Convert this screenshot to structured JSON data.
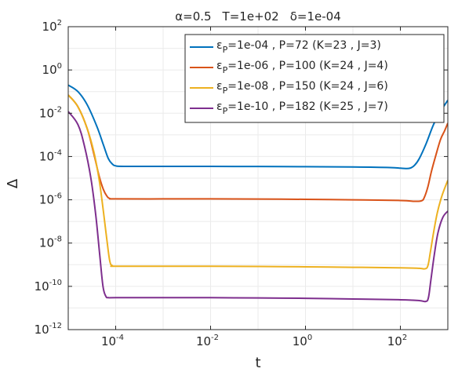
{
  "chart_data": {
    "type": "line",
    "title": "α=0.5   T=1e+02   δ=1e-04",
    "title_parts": {
      "alpha": "α=0.5",
      "T": "T=1e+02",
      "delta": "δ=1e-04"
    },
    "xlabel": "t",
    "ylabel": "Δ",
    "x_scale": "log",
    "y_scale": "log",
    "xlim": [
      1e-05,
      1000
    ],
    "ylim": [
      1e-12,
      100
    ],
    "x_ticks": [
      {
        "value": 0.0001,
        "base": "10",
        "exp": "-4"
      },
      {
        "value": 0.01,
        "base": "10",
        "exp": "-2"
      },
      {
        "value": 1,
        "base": "10",
        "exp": "0"
      },
      {
        "value": 100,
        "base": "10",
        "exp": "2"
      }
    ],
    "y_ticks": [
      {
        "value": 100,
        "base": "10",
        "exp": "2"
      },
      {
        "value": 1,
        "base": "10",
        "exp": "0"
      },
      {
        "value": 0.01,
        "base": "10",
        "exp": "-2"
      },
      {
        "value": 0.0001,
        "base": "10",
        "exp": "-4"
      },
      {
        "value": 1e-06,
        "base": "10",
        "exp": "-6"
      },
      {
        "value": 1e-08,
        "base": "10",
        "exp": "-8"
      },
      {
        "value": 1e-10,
        "base": "10",
        "exp": "-10"
      },
      {
        "value": 1e-12,
        "base": "10",
        "exp": "-12"
      }
    ],
    "grid": true,
    "legend_position": "top-right",
    "series": [
      {
        "legend": {
          "eps": "ε",
          "sub": "P",
          "rest": "=1e-04 ,   P=72   (K=23 ,   J=3)"
        },
        "color": "#0072BD",
        "points": [
          [
            1e-05,
            0.2
          ],
          [
            1.6e-05,
            0.1
          ],
          [
            2.5e-05,
            0.025
          ],
          [
            4e-05,
            0.0025
          ],
          [
            5.5e-05,
            0.00035
          ],
          [
            7e-05,
            8e-05
          ],
          [
            8.5e-05,
            4.5e-05
          ],
          [
            0.0001,
            3.7e-05
          ],
          [
            0.00015,
            3.5e-05
          ],
          [
            0.001,
            3.5e-05
          ],
          [
            0.01,
            3.5e-05
          ],
          [
            0.1,
            3.45e-05
          ],
          [
            1,
            3.4e-05
          ],
          [
            10,
            3.3e-05
          ],
          [
            60,
            3.1e-05
          ],
          [
            120,
            2.8e-05
          ],
          [
            160,
            2.9e-05
          ],
          [
            200,
            4e-05
          ],
          [
            250,
            8e-05
          ],
          [
            350,
            0.0004
          ],
          [
            500,
            0.003
          ],
          [
            700,
            0.012
          ],
          [
            1000,
            0.04
          ]
        ]
      },
      {
        "legend": {
          "eps": "ε",
          "sub": "P",
          "rest": "=1e-06 ,   P=100   (K=24 ,   J=4)"
        },
        "color": "#D95319",
        "points": [
          [
            1e-05,
            0.07
          ],
          [
            1.6e-05,
            0.02
          ],
          [
            2.5e-05,
            0.002
          ],
          [
            3.5e-05,
            0.00012
          ],
          [
            4.5e-05,
            1.2e-05
          ],
          [
            5.5e-05,
            3e-06
          ],
          [
            6.5e-05,
            1.5e-06
          ],
          [
            7.5e-05,
            1.15e-06
          ],
          [
            0.0001,
            1.1e-06
          ],
          [
            0.001,
            1.1e-06
          ],
          [
            0.01,
            1.1e-06
          ],
          [
            0.1,
            1.08e-06
          ],
          [
            1,
            1.05e-06
          ],
          [
            10,
            1e-06
          ],
          [
            100,
            9.3e-07
          ],
          [
            200,
            8.5e-07
          ],
          [
            280,
            9e-07
          ],
          [
            320,
            1.3e-06
          ],
          [
            380,
            4e-06
          ],
          [
            450,
            2e-05
          ],
          [
            550,
            0.0001
          ],
          [
            700,
            0.0006
          ],
          [
            850,
            0.0015
          ],
          [
            1000,
            0.0035
          ]
        ]
      },
      {
        "legend": {
          "eps": "ε",
          "sub": "P",
          "rest": "=1e-08 ,   P=150   (K=24 ,   J=6)"
        },
        "color": "#EDB120",
        "points": [
          [
            1e-05,
            0.07
          ],
          [
            1.6e-05,
            0.02
          ],
          [
            2.5e-05,
            0.002
          ],
          [
            3.5e-05,
            0.00015
          ],
          [
            4.5e-05,
            8e-06
          ],
          [
            5.5e-05,
            3e-07
          ],
          [
            6.5e-05,
            1.5e-08
          ],
          [
            7.5e-05,
            1.5e-09
          ],
          [
            8.5e-05,
            9e-10
          ],
          [
            0.0001,
            8.5e-10
          ],
          [
            0.001,
            8.5e-10
          ],
          [
            0.01,
            8.5e-10
          ],
          [
            0.1,
            8.3e-10
          ],
          [
            1,
            8e-10
          ],
          [
            10,
            7.6e-10
          ],
          [
            100,
            7.2e-10
          ],
          [
            250,
            6.8e-10
          ],
          [
            330,
            6.5e-10
          ],
          [
            380,
            9e-10
          ],
          [
            430,
            4e-09
          ],
          [
            500,
            3e-08
          ],
          [
            600,
            2.5e-07
          ],
          [
            750,
            1.5e-06
          ],
          [
            1000,
            8e-06
          ]
        ]
      },
      {
        "legend": {
          "eps": "ε",
          "sub": "P",
          "rest": "=1e-10 ,   P=182   (K=25 ,   J=7)"
        },
        "color": "#7E2F8E",
        "points": [
          [
            1e-05,
            0.012
          ],
          [
            1.6e-05,
            0.003
          ],
          [
            2.2e-05,
            0.0003
          ],
          [
            3e-05,
            1e-05
          ],
          [
            3.8e-05,
            2e-07
          ],
          [
            4.6e-05,
            3e-09
          ],
          [
            5.4e-05,
            1e-10
          ],
          [
            6.2e-05,
            3.5e-11
          ],
          [
            7e-05,
            3e-11
          ],
          [
            0.0001,
            3e-11
          ],
          [
            0.001,
            3e-11
          ],
          [
            0.01,
            3e-11
          ],
          [
            0.1,
            2.9e-11
          ],
          [
            1,
            2.8e-11
          ],
          [
            10,
            2.6e-11
          ],
          [
            100,
            2.4e-11
          ],
          [
            250,
            2.2e-11
          ],
          [
            340,
            2e-11
          ],
          [
            390,
            3e-11
          ],
          [
            440,
            2e-10
          ],
          [
            520,
            3e-09
          ],
          [
            620,
            3e-08
          ],
          [
            780,
            1.5e-07
          ],
          [
            1000,
            3e-07
          ]
        ]
      }
    ]
  }
}
